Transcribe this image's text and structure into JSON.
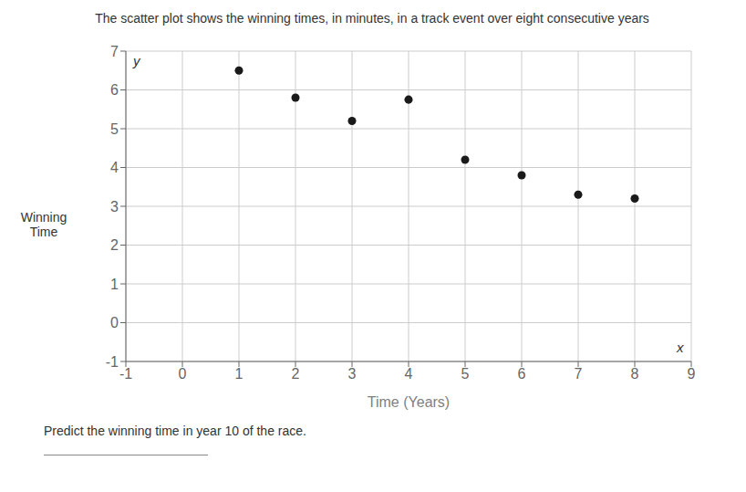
{
  "chart_data": {
    "type": "scatter",
    "title": "The scatter plot shows the winning times, in minutes, in a track event over eight consecutive years",
    "subtitle": "Predict the winning time in year 10 of the race.",
    "xlabel": "Time (Years)",
    "ylabel": "Winning\nTime",
    "annotations": [
      "y",
      "x"
    ],
    "x": [
      1,
      2,
      3,
      4,
      5,
      6,
      7,
      8
    ],
    "values": [
      6.5,
      5.8,
      5.2,
      5.75,
      4.2,
      3.8,
      3.3,
      3.2
    ],
    "color": "#1a1a1a",
    "xlim": [
      -1,
      9
    ],
    "ylim": [
      -1,
      7
    ],
    "xticks": [
      -1,
      0,
      1,
      2,
      3,
      4,
      5,
      6,
      7,
      8,
      9
    ],
    "yticks": [
      -1,
      0,
      1,
      2,
      3,
      4,
      5,
      6,
      7
    ],
    "grid": true
  }
}
